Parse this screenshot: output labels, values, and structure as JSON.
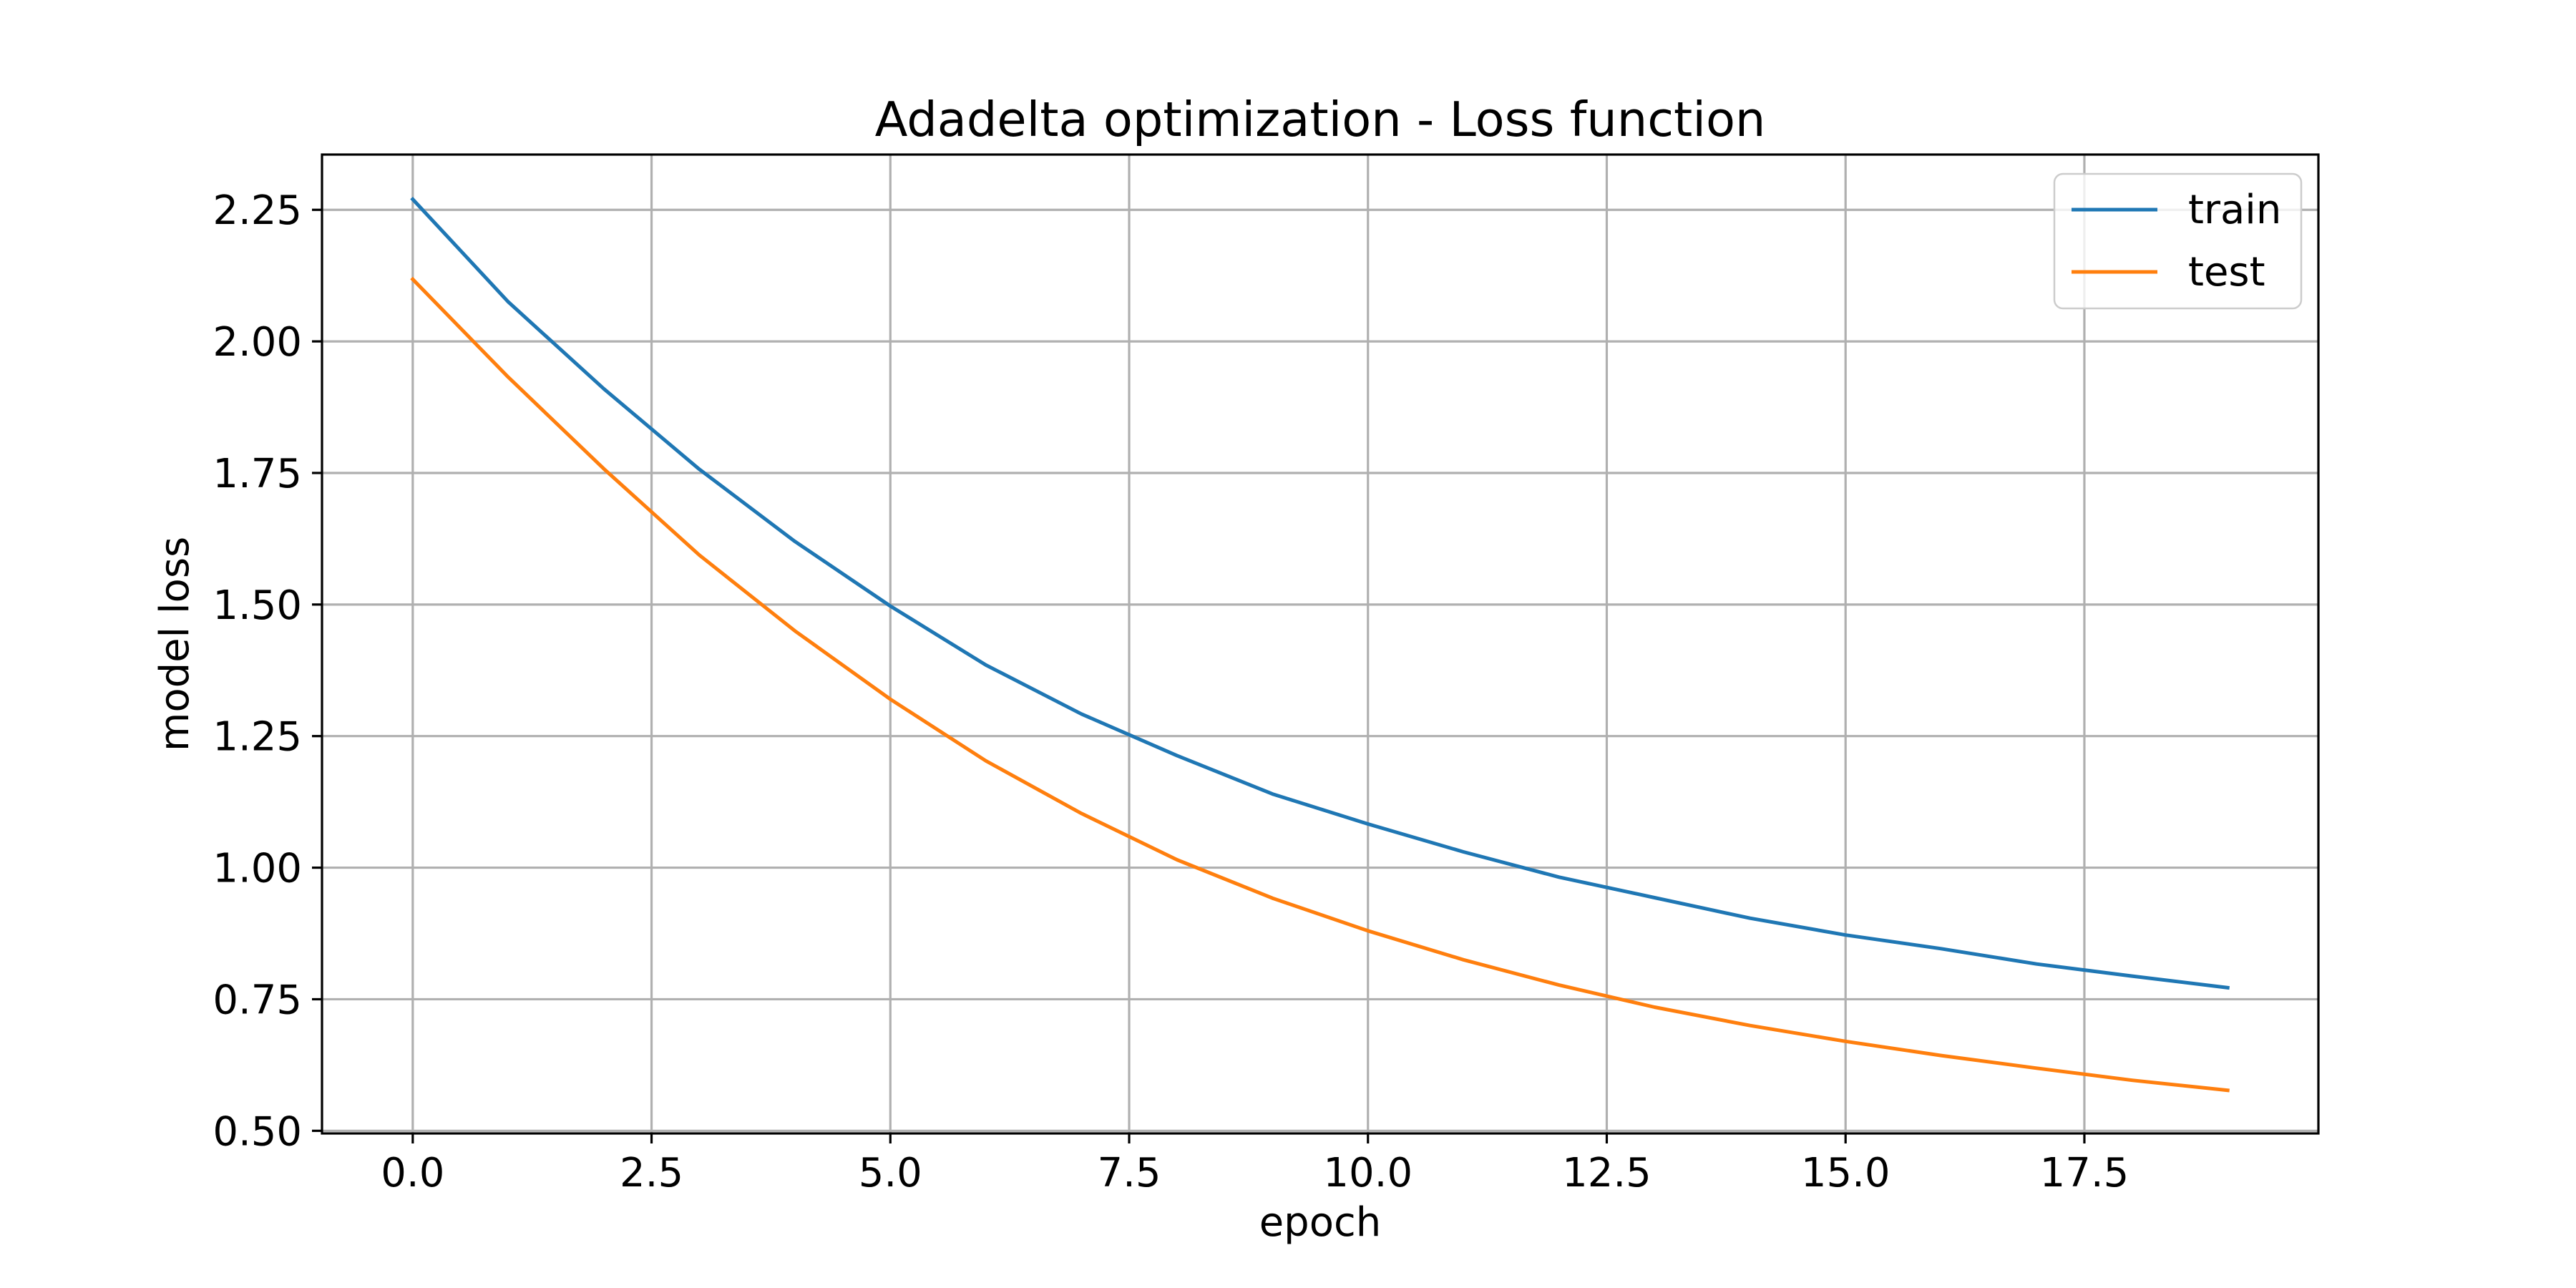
{
  "chart_data": {
    "type": "line",
    "title": "Adadelta optimization - Loss function",
    "xlabel": "epoch",
    "ylabel": "model loss",
    "xlim": [
      -0.95,
      19.95
    ],
    "ylim": [
      0.495,
      2.355
    ],
    "xticks": [
      0.0,
      2.5,
      5.0,
      7.5,
      10.0,
      12.5,
      15.0,
      17.5
    ],
    "xtick_labels": [
      "0.0",
      "2.5",
      "5.0",
      "7.5",
      "10.0",
      "12.5",
      "15.0",
      "17.5"
    ],
    "yticks": [
      0.5,
      0.75,
      1.0,
      1.25,
      1.5,
      1.75,
      2.0,
      2.25
    ],
    "ytick_labels": [
      "0.50",
      "0.75",
      "1.00",
      "1.25",
      "1.50",
      "1.75",
      "2.00",
      "2.25"
    ],
    "grid": true,
    "legend_position": "top-right",
    "x": [
      0,
      1,
      2,
      3,
      4,
      5,
      6,
      7,
      8,
      9,
      10,
      11,
      12,
      13,
      14,
      15,
      16,
      17,
      18,
      19
    ],
    "series": [
      {
        "name": "train",
        "color": "#1f77b4",
        "values": [
          2.27,
          2.075,
          1.91,
          1.757,
          1.62,
          1.497,
          1.385,
          1.292,
          1.213,
          1.14,
          1.083,
          1.03,
          0.982,
          0.943,
          0.904,
          0.872,
          0.846,
          0.817,
          0.794,
          0.772
        ]
      },
      {
        "name": "test",
        "color": "#ff7f0e",
        "values": [
          2.118,
          1.932,
          1.758,
          1.594,
          1.45,
          1.32,
          1.203,
          1.103,
          1.015,
          0.942,
          0.88,
          0.825,
          0.777,
          0.735,
          0.7,
          0.67,
          0.643,
          0.619,
          0.596,
          0.577
        ]
      }
    ]
  }
}
